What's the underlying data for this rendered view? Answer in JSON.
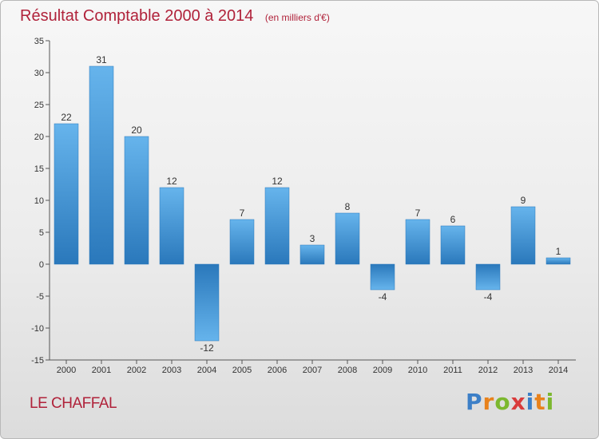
{
  "chart_data": {
    "type": "bar",
    "title": "Résultat Comptable 2000 à 2014",
    "subtitle": "(en milliers d'€)",
    "xlabel": "",
    "ylabel": "",
    "categories": [
      "2000",
      "2001",
      "2002",
      "2003",
      "2004",
      "2005",
      "2006",
      "2007",
      "2008",
      "2009",
      "2010",
      "2011",
      "2012",
      "2013",
      "2014"
    ],
    "values": [
      22,
      31,
      20,
      12,
      -12,
      7,
      12,
      3,
      8,
      -4,
      7,
      6,
      -4,
      9,
      1
    ],
    "ylim": [
      -15,
      35
    ],
    "yticks": [
      35,
      30,
      25,
      20,
      15,
      10,
      5,
      0,
      -5,
      -10,
      -15
    ],
    "grid": false,
    "bar_color_light": "#66b4ec",
    "bar_color_dark": "#2f7fc0"
  },
  "footer": {
    "commune": "LE CHAFFAL",
    "logo_letters": [
      "P",
      "r",
      "o",
      "x",
      "i",
      "t",
      "i"
    ],
    "logo_colors": [
      "#3c7fc7",
      "#e8821c",
      "#7cb82f",
      "#d93b3b",
      "#3c7fc7",
      "#e8821c",
      "#7cb82f"
    ]
  }
}
